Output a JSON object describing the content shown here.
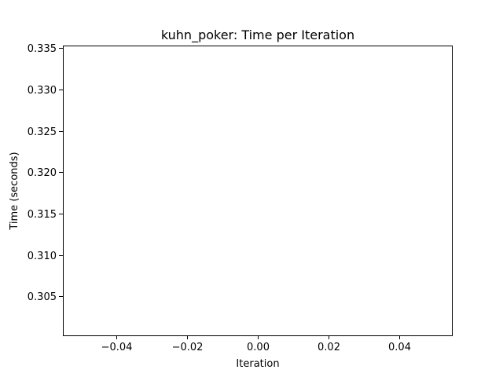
{
  "chart_data": {
    "type": "line",
    "title": "kuhn_poker: Time per Iteration",
    "xlabel": "Iteration",
    "ylabel": "Time (seconds)",
    "xlim": [
      -0.055,
      0.055
    ],
    "ylim": [
      0.3003,
      0.3353
    ],
    "xticks": [
      -0.04,
      -0.02,
      0.0,
      0.02,
      0.04
    ],
    "xtick_labels": [
      "−0.04",
      "−0.02",
      "0.00",
      "0.02",
      "0.04"
    ],
    "yticks": [
      0.305,
      0.31,
      0.315,
      0.32,
      0.325,
      0.33,
      0.335
    ],
    "ytick_labels": [
      "0.305",
      "0.310",
      "0.315",
      "0.320",
      "0.325",
      "0.330",
      "0.335"
    ],
    "series": [
      {
        "x": [],
        "y": []
      }
    ],
    "grid": false,
    "colors": {
      "axes": "#000000",
      "background": "#ffffff",
      "line": "#1f77b4"
    }
  }
}
